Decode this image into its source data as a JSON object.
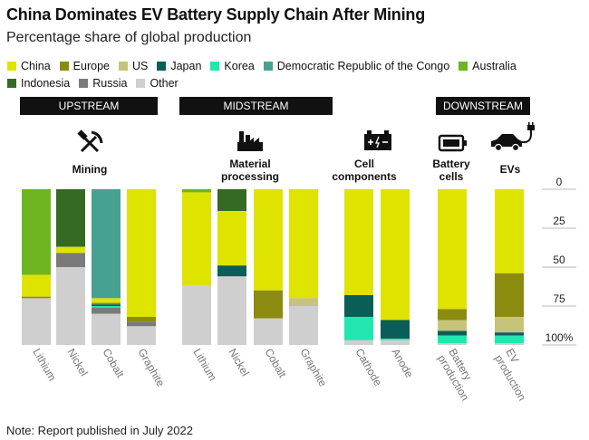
{
  "title": "China Dominates EV Battery Supply Chain After Mining",
  "subtitle": "Percentage share of global production",
  "note": "Note: Report published in July 2022",
  "legend": [
    {
      "name": "China",
      "color": "#dfe300"
    },
    {
      "name": "Europe",
      "color": "#8b8b10"
    },
    {
      "name": "US",
      "color": "#c5c47a"
    },
    {
      "name": "Japan",
      "color": "#0b5e57"
    },
    {
      "name": "Korea",
      "color": "#22e6b0"
    },
    {
      "name": "Democratic Republic of the Congo",
      "color": "#47a193"
    },
    {
      "name": "Australia",
      "color": "#6eb521"
    },
    {
      "name": "Indonesia",
      "color": "#356a24"
    },
    {
      "name": "Russia",
      "color": "#7a7a7a"
    },
    {
      "name": "Other",
      "color": "#cfcfcf"
    }
  ],
  "stages": [
    {
      "label": "UPSTREAM",
      "icon": "hammer-pick-icon",
      "sublabel": [
        "Mining"
      ]
    },
    {
      "label": "MIDSTREAM",
      "icon": "factory-icon",
      "sublabel": [
        "Material",
        "processing"
      ]
    },
    {
      "label": "",
      "icon": "battery-cell-icon",
      "sublabel": [
        "Cell",
        "components"
      ]
    },
    {
      "label": "DOWNSTREAM",
      "icon": "battery-icon",
      "sublabel": [
        "Battery",
        "cells"
      ]
    },
    {
      "label": "",
      "icon": "ev-car-icon",
      "sublabel": [
        "EVs"
      ]
    }
  ],
  "y_ticks": [
    "0",
    "25",
    "50",
    "75",
    "100%"
  ],
  "chart_data": {
    "type": "bar",
    "stacked": true,
    "title": "China Dominates EV Battery Supply Chain After Mining",
    "subtitle": "Percentage share of global production",
    "ylim": [
      0,
      100
    ],
    "y_direction": "top-down",
    "categories": [
      "Lithium",
      "Nickel",
      "Cobalt",
      "Graphite",
      "Lithium",
      "Nickel",
      "Cobalt",
      "Graphite",
      "Cathode",
      "Anode",
      "Battery production",
      "EV production"
    ],
    "category_labels": [
      [
        "Lithium"
      ],
      [
        "Nickel"
      ],
      [
        "Cobalt"
      ],
      [
        "Graphite"
      ],
      [
        "Lithium"
      ],
      [
        "Nickel"
      ],
      [
        "Cobalt"
      ],
      [
        "Graphite"
      ],
      [
        "Cathode"
      ],
      [
        "Anode"
      ],
      [
        "Battery",
        "production"
      ],
      [
        "EV",
        "production"
      ]
    ],
    "series": [
      {
        "name": "Australia",
        "values": [
          55,
          0,
          0,
          0,
          2,
          0,
          0,
          0,
          0,
          0,
          0,
          0
        ]
      },
      {
        "name": "Indonesia",
        "values": [
          0,
          37,
          0,
          0,
          0,
          14,
          0,
          0,
          0,
          0,
          0,
          0
        ]
      },
      {
        "name": "Democratic Republic of the Congo",
        "values": [
          0,
          0,
          70,
          0,
          0,
          0,
          0,
          0,
          0,
          0,
          0,
          0
        ]
      },
      {
        "name": "China",
        "values": [
          14,
          4,
          3,
          82,
          60,
          35,
          65,
          70,
          68,
          84,
          77,
          54
        ]
      },
      {
        "name": "Europe",
        "values": [
          1,
          0,
          1,
          3,
          0,
          0,
          18,
          0,
          0,
          0,
          7,
          28
        ]
      },
      {
        "name": "US",
        "values": [
          0,
          0,
          0,
          0,
          0,
          0,
          0,
          5,
          0,
          0,
          7,
          10
        ]
      },
      {
        "name": "Japan",
        "values": [
          0,
          0,
          1,
          0,
          0,
          7,
          0,
          0,
          14,
          12,
          3,
          2
        ]
      },
      {
        "name": "Korea",
        "values": [
          0,
          0,
          1,
          0,
          0,
          0,
          0,
          0,
          15,
          1,
          5,
          5
        ]
      },
      {
        "name": "Russia",
        "values": [
          0,
          9,
          4,
          3,
          0,
          0,
          0,
          0,
          0,
          0,
          0,
          0
        ]
      },
      {
        "name": "Other",
        "values": [
          30,
          50,
          20,
          12,
          38,
          44,
          17,
          25,
          3,
          3,
          1,
          1
        ]
      }
    ]
  }
}
